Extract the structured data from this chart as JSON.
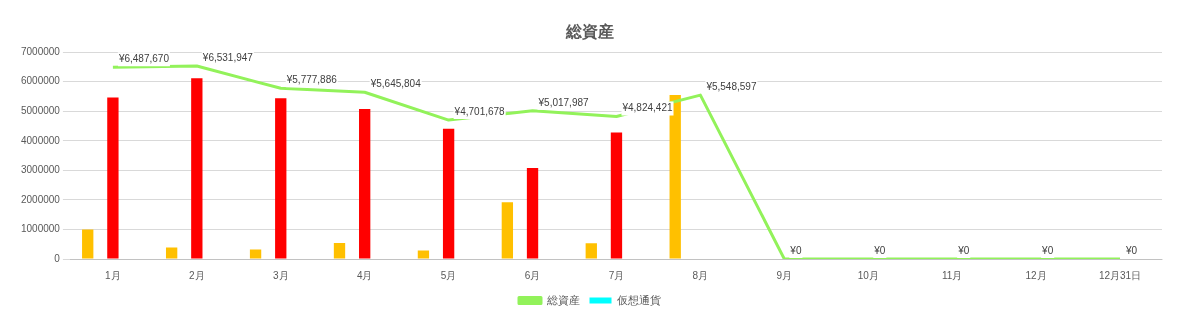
{
  "chart_data": {
    "type": "bar",
    "title": "総資産",
    "categories": [
      "1月",
      "2月",
      "3月",
      "4月",
      "5月",
      "6月",
      "7月",
      "8月",
      "9月",
      "10月",
      "11月",
      "12月",
      "12月31日"
    ],
    "series": [
      {
        "color": "#ffc000",
        "values": [
          1000000,
          390000,
          320000,
          540000,
          290000,
          1920000,
          530000,
          5550000,
          null,
          null,
          null,
          null,
          null
        ]
      },
      {
        "color": "#ff0000",
        "values": [
          5470000,
          6120000,
          5440000,
          5080000,
          4410000,
          3080000,
          4280000,
          0,
          null,
          null,
          null,
          null,
          null
        ]
      },
      {
        "name": "仮想通貨",
        "color": "#00ffff",
        "values": [
          0,
          0,
          0,
          0,
          0,
          0,
          0,
          0,
          null,
          null,
          null,
          null,
          null
        ]
      },
      {
        "name": "総資産",
        "type": "line",
        "color": "#92f25a",
        "values": [
          6487670,
          6531947,
          5777886,
          5645804,
          4701678,
          5017987,
          4824421,
          5548597,
          0,
          0,
          0,
          0,
          0
        ],
        "value_labels": [
          "¥6,487,670",
          "¥6,531,947",
          "¥5,777,886",
          "¥5,645,804",
          "¥4,701,678",
          "¥5,017,987",
          "¥4,824,421",
          "¥5,548,597",
          "¥0",
          "¥0",
          "¥0",
          "¥0",
          "¥0"
        ]
      }
    ],
    "ylim": [
      0,
      7000000
    ],
    "yticks": [
      0,
      1000000,
      2000000,
      3000000,
      4000000,
      5000000,
      6000000,
      7000000
    ],
    "grid": "y",
    "legend": "bottom",
    "marker": "none"
  }
}
